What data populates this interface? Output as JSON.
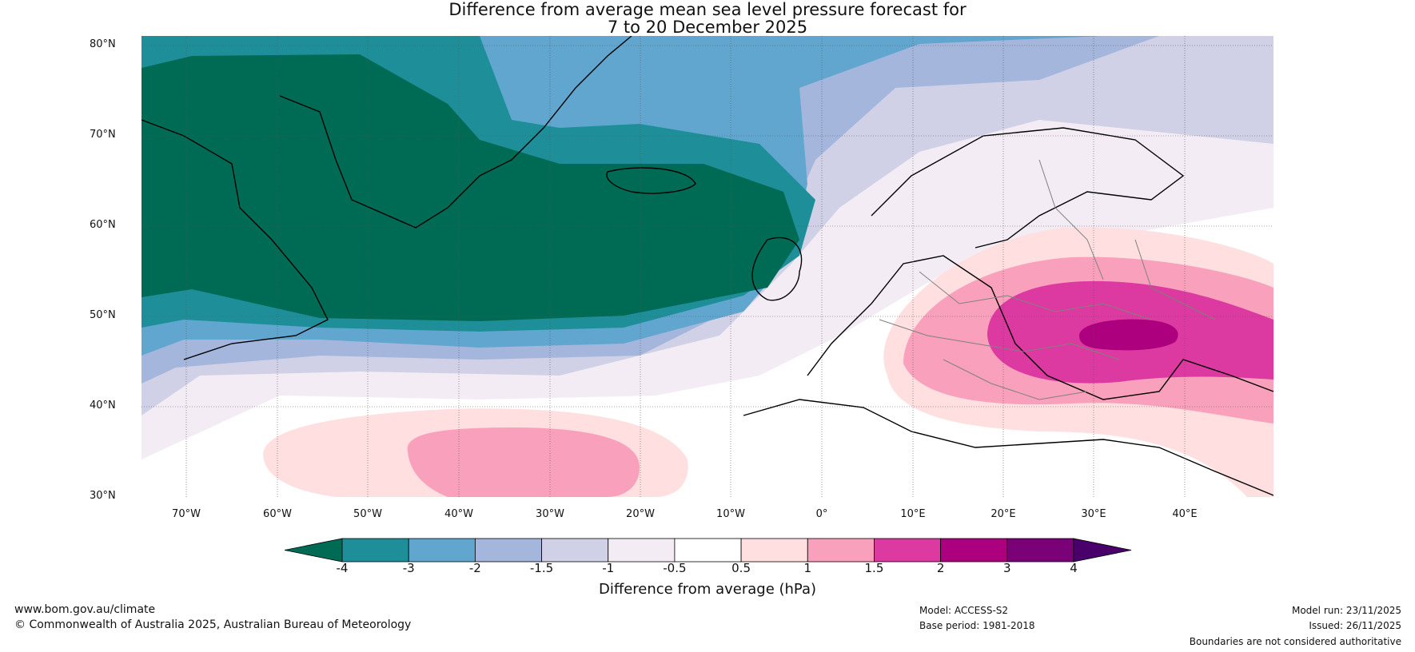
{
  "title": {
    "line1": "Difference from average mean sea level pressure forecast for",
    "line2": "7 to 20 December 2025"
  },
  "map": {
    "lat_labels": [
      "80°N",
      "70°N",
      "60°N",
      "50°N",
      "40°N",
      "30°N"
    ],
    "lon_labels": [
      "70°W",
      "60°W",
      "50°W",
      "40°W",
      "30°W",
      "20°W",
      "10°W",
      "0°",
      "10°E",
      "20°E",
      "30°E",
      "40°E"
    ],
    "lat_range": [
      30,
      80
    ],
    "lon_range": [
      -75,
      50
    ],
    "regions": [
      "negative anomaly over Greenland and North Atlantic",
      "positive anomaly over Eastern Europe and Black Sea",
      "positive anomaly over subtropical Atlantic"
    ]
  },
  "colorbar": {
    "ticks": [
      "-4",
      "-3",
      "-2",
      "-1.5",
      "-1",
      "-0.5",
      "0.5",
      "1",
      "1.5",
      "2",
      "3",
      "4"
    ],
    "colors": [
      "#006b54",
      "#1e8f99",
      "#61a6cf",
      "#a4b6dc",
      "#d0d0e6",
      "#f3ecf5",
      "#ffffff",
      "#ffdfe0",
      "#f9a1bc",
      "#dc3aa1",
      "#ad007f",
      "#7a0177",
      "#49006a"
    ],
    "label": "Difference from average (hPa)"
  },
  "footer": {
    "website": "www.bom.gov.au/climate",
    "copyright": "© Commonwealth of Australia 2025, Australian Bureau of Meteorology",
    "model": "Model: ACCESS-S2",
    "base_period": "Base period: 1981-2018",
    "model_run": "Model run: 23/11/2025",
    "issued": "Issued: 26/11/2025",
    "boundaries": "Boundaries are not considered authoritative"
  }
}
